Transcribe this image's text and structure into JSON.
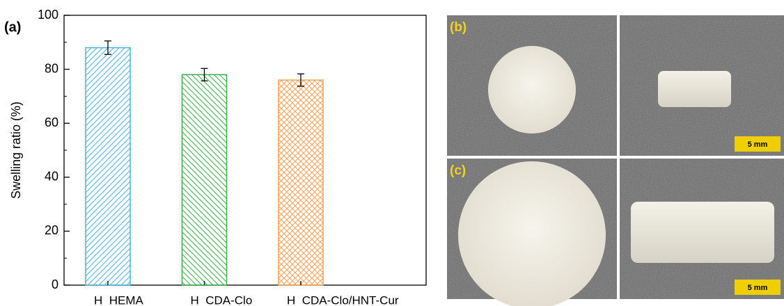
{
  "chart_data": {
    "type": "bar",
    "panel_label": "(a)",
    "y_label": "Swelling ratio (%)",
    "categories": [
      "H  HEMA",
      "H  CDA-Clo",
      "H  CDA-Clo/HNT-Cur"
    ],
    "values": [
      88,
      78,
      76
    ],
    "errors": [
      2.5,
      2.3,
      2.3
    ],
    "colors": [
      "#4db3dd",
      "#3aad4a",
      "#f2a45a"
    ],
    "ylim": [
      0,
      100
    ],
    "yticks": [
      0,
      20,
      40,
      60,
      80,
      100
    ]
  },
  "photos": {
    "panels": [
      {
        "label": "(b)",
        "scale_bar": "5 mm"
      },
      {
        "label": "(c)",
        "scale_bar": "5 mm"
      }
    ]
  }
}
